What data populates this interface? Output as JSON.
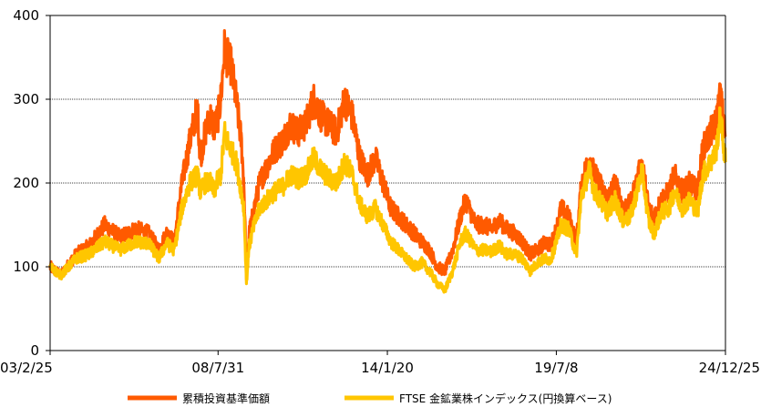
{
  "chart_data": {
    "type": "line",
    "title": "",
    "xlabel": "",
    "ylabel": "",
    "ylim": [
      0,
      400
    ],
    "yticks": [
      0,
      100,
      200,
      300,
      400
    ],
    "xlim": [
      "2003-02-25",
      "2024-12-25"
    ],
    "xtick_labels": [
      "03/2/25",
      "08/7/31",
      "14/1/20",
      "19/7/8",
      "24/12/25"
    ],
    "xtick_values": [
      "2003-02-25",
      "2008-07-31",
      "2014-01-20",
      "2019-07-08",
      "2024-12-25"
    ],
    "grid": {
      "horizontal": true,
      "style": "dotted"
    },
    "legend_position": "bottom",
    "series": [
      {
        "name": "累積投資基準価額",
        "color": "#ff5a00",
        "points": [
          [
            "2003-02-25",
            100
          ],
          [
            "2003-07-01",
            90
          ],
          [
            "2004-01-01",
            115
          ],
          [
            "2004-06-01",
            125
          ],
          [
            "2004-12-01",
            150
          ],
          [
            "2005-06-01",
            135
          ],
          [
            "2005-12-01",
            145
          ],
          [
            "2006-05-01",
            140
          ],
          [
            "2006-09-01",
            120
          ],
          [
            "2006-12-01",
            140
          ],
          [
            "2007-03-01",
            130
          ],
          [
            "2007-06-01",
            200
          ],
          [
            "2007-09-01",
            250
          ],
          [
            "2007-12-01",
            290
          ],
          [
            "2008-01-01",
            230
          ],
          [
            "2008-03-01",
            260
          ],
          [
            "2008-05-01",
            280
          ],
          [
            "2008-06-15",
            265
          ],
          [
            "2008-07-31",
            280
          ],
          [
            "2008-09-01",
            300
          ],
          [
            "2008-10-15",
            360
          ],
          [
            "2008-11-15",
            350
          ],
          [
            "2009-01-01",
            340
          ],
          [
            "2009-03-01",
            300
          ],
          [
            "2009-05-01",
            250
          ],
          [
            "2009-06-01",
            200
          ],
          [
            "2009-07-01",
            90
          ],
          [
            "2009-08-01",
            140
          ],
          [
            "2009-10-01",
            170
          ],
          [
            "2009-12-01",
            200
          ],
          [
            "2010-03-01",
            220
          ],
          [
            "2010-06-01",
            240
          ],
          [
            "2010-09-01",
            250
          ],
          [
            "2010-12-01",
            270
          ],
          [
            "2011-03-01",
            260
          ],
          [
            "2011-06-01",
            270
          ],
          [
            "2011-09-01",
            300
          ],
          [
            "2011-12-01",
            280
          ],
          [
            "2012-03-01",
            270
          ],
          [
            "2012-06-01",
            260
          ],
          [
            "2012-09-01",
            300
          ],
          [
            "2012-12-01",
            280
          ],
          [
            "2013-03-01",
            230
          ],
          [
            "2013-06-01",
            210
          ],
          [
            "2013-09-01",
            230
          ],
          [
            "2013-12-01",
            200
          ],
          [
            "2014-03-01",
            170
          ],
          [
            "2014-06-01",
            160
          ],
          [
            "2014-09-01",
            150
          ],
          [
            "2014-12-01",
            140
          ],
          [
            "2015-03-01",
            130
          ],
          [
            "2015-06-01",
            120
          ],
          [
            "2015-09-01",
            100
          ],
          [
            "2015-12-01",
            95
          ],
          [
            "2016-03-01",
            120
          ],
          [
            "2016-06-01",
            160
          ],
          [
            "2016-08-01",
            180
          ],
          [
            "2016-12-01",
            150
          ],
          [
            "2017-03-01",
            150
          ],
          [
            "2017-06-01",
            145
          ],
          [
            "2017-09-01",
            155
          ],
          [
            "2017-12-01",
            145
          ],
          [
            "2018-03-01",
            140
          ],
          [
            "2018-06-01",
            130
          ],
          [
            "2018-09-01",
            115
          ],
          [
            "2018-12-01",
            120
          ],
          [
            "2019-03-01",
            130
          ],
          [
            "2019-05-01",
            125
          ],
          [
            "2019-07-08",
            145
          ],
          [
            "2019-09-01",
            170
          ],
          [
            "2019-12-01",
            160
          ],
          [
            "2020-03-01",
            130
          ],
          [
            "2020-05-01",
            200
          ],
          [
            "2020-08-01",
            230
          ],
          [
            "2020-10-01",
            210
          ],
          [
            "2020-12-01",
            200
          ],
          [
            "2021-03-01",
            180
          ],
          [
            "2021-06-01",
            200
          ],
          [
            "2021-09-01",
            170
          ],
          [
            "2021-12-01",
            175
          ],
          [
            "2022-04-15",
            225
          ],
          [
            "2022-07-01",
            170
          ],
          [
            "2022-09-01",
            160
          ],
          [
            "2022-12-01",
            180
          ],
          [
            "2023-03-01",
            190
          ],
          [
            "2023-05-01",
            210
          ],
          [
            "2023-08-01",
            190
          ],
          [
            "2023-11-01",
            200
          ],
          [
            "2024-02-01",
            190
          ],
          [
            "2024-04-01",
            240
          ],
          [
            "2024-07-01",
            260
          ],
          [
            "2024-09-01",
            270
          ],
          [
            "2024-10-25",
            305
          ],
          [
            "2024-12-25",
            255
          ]
        ]
      },
      {
        "name": "FTSE 金鉱業株インデックス(円換算ベース)",
        "color": "#ffc600",
        "points": [
          [
            "2003-02-25",
            100
          ],
          [
            "2003-07-01",
            90
          ],
          [
            "2004-01-01",
            110
          ],
          [
            "2004-06-01",
            115
          ],
          [
            "2004-12-01",
            130
          ],
          [
            "2005-06-01",
            120
          ],
          [
            "2005-12-01",
            130
          ],
          [
            "2006-05-01",
            128
          ],
          [
            "2006-09-01",
            110
          ],
          [
            "2006-12-01",
            128
          ],
          [
            "2007-03-01",
            120
          ],
          [
            "2007-06-01",
            170
          ],
          [
            "2007-09-01",
            200
          ],
          [
            "2007-12-01",
            210
          ],
          [
            "2008-01-01",
            190
          ],
          [
            "2008-03-01",
            200
          ],
          [
            "2008-05-01",
            200
          ],
          [
            "2008-06-15",
            190
          ],
          [
            "2008-07-31",
            205
          ],
          [
            "2008-09-01",
            210
          ],
          [
            "2008-10-15",
            260
          ],
          [
            "2008-11-15",
            250
          ],
          [
            "2009-01-01",
            240
          ],
          [
            "2009-03-01",
            225
          ],
          [
            "2009-05-01",
            190
          ],
          [
            "2009-06-01",
            170
          ],
          [
            "2009-07-01",
            80
          ],
          [
            "2009-08-01",
            125
          ],
          [
            "2009-10-01",
            150
          ],
          [
            "2009-12-01",
            170
          ],
          [
            "2010-03-01",
            180
          ],
          [
            "2010-06-01",
            190
          ],
          [
            "2010-09-01",
            195
          ],
          [
            "2010-12-01",
            210
          ],
          [
            "2011-03-01",
            205
          ],
          [
            "2011-06-01",
            210
          ],
          [
            "2011-09-01",
            230
          ],
          [
            "2011-12-01",
            215
          ],
          [
            "2012-03-01",
            205
          ],
          [
            "2012-06-01",
            200
          ],
          [
            "2012-09-01",
            225
          ],
          [
            "2012-12-01",
            210
          ],
          [
            "2013-03-01",
            175
          ],
          [
            "2013-06-01",
            160
          ],
          [
            "2013-09-01",
            170
          ],
          [
            "2013-12-01",
            150
          ],
          [
            "2014-03-01",
            130
          ],
          [
            "2014-06-01",
            120
          ],
          [
            "2014-09-01",
            110
          ],
          [
            "2014-12-01",
            100
          ],
          [
            "2015-03-01",
            105
          ],
          [
            "2015-06-01",
            95
          ],
          [
            "2015-09-01",
            80
          ],
          [
            "2015-12-01",
            72
          ],
          [
            "2016-03-01",
            95
          ],
          [
            "2016-06-01",
            130
          ],
          [
            "2016-08-01",
            140
          ],
          [
            "2016-12-01",
            120
          ],
          [
            "2017-03-01",
            120
          ],
          [
            "2017-06-01",
            118
          ],
          [
            "2017-09-01",
            125
          ],
          [
            "2017-12-01",
            115
          ],
          [
            "2018-03-01",
            115
          ],
          [
            "2018-06-01",
            110
          ],
          [
            "2018-09-01",
            95
          ],
          [
            "2018-12-01",
            105
          ],
          [
            "2019-03-01",
            110
          ],
          [
            "2019-05-01",
            108
          ],
          [
            "2019-07-08",
            130
          ],
          [
            "2019-09-01",
            150
          ],
          [
            "2019-12-01",
            145
          ],
          [
            "2020-03-01",
            115
          ],
          [
            "2020-05-01",
            185
          ],
          [
            "2020-08-01",
            215
          ],
          [
            "2020-10-01",
            190
          ],
          [
            "2020-12-01",
            180
          ],
          [
            "2021-03-01",
            165
          ],
          [
            "2021-06-01",
            180
          ],
          [
            "2021-09-01",
            155
          ],
          [
            "2021-12-01",
            160
          ],
          [
            "2022-04-15",
            215
          ],
          [
            "2022-07-01",
            155
          ],
          [
            "2022-09-01",
            140
          ],
          [
            "2022-12-01",
            165
          ],
          [
            "2023-03-01",
            170
          ],
          [
            "2023-05-01",
            190
          ],
          [
            "2023-08-01",
            170
          ],
          [
            "2023-11-01",
            180
          ],
          [
            "2024-02-01",
            165
          ],
          [
            "2024-04-01",
            210
          ],
          [
            "2024-07-01",
            225
          ],
          [
            "2024-09-01",
            235
          ],
          [
            "2024-10-25",
            280
          ],
          [
            "2024-12-25",
            225
          ]
        ]
      }
    ]
  }
}
